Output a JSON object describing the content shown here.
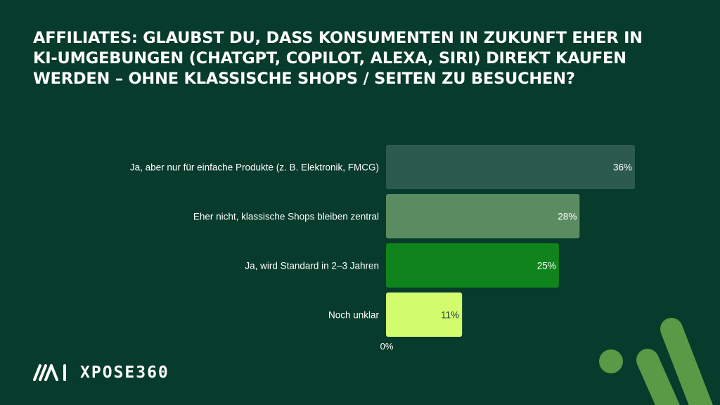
{
  "title": "Affiliates: Glaubst du, dass Konsumenten in Zukunft eher in KI-Umgebungen (ChatGPT, Copilot, Alexa, Siri) direkt kaufen werden – ohne klassische Shops / Seiten zu besuchen?",
  "logo": {
    "text": "XPOSE360",
    "icon": "ai-logo-icon"
  },
  "colors": {
    "background": "#073b2b",
    "accent": "#5a9a46"
  },
  "chart_data": {
    "type": "bar",
    "orientation": "horizontal",
    "title": "Affiliates: Glaubst du, dass Konsumenten in Zukunft eher in KI-Umgebungen (ChatGPT, Copilot, Alexa, Siri) direkt kaufen werden – ohne klassische Shops / Seiten zu besuchen?",
    "categories": [
      "Ja, aber nur für einfache Produkte (z. B. Elektronik, FMCG)",
      "Eher nicht, klassische Shops bleiben zentral",
      "Ja, wird Standard in 2–3 Jahren",
      "Noch unklar"
    ],
    "values": [
      36,
      28,
      25,
      11
    ],
    "value_labels": [
      "36%",
      "28%",
      "25%",
      "11%"
    ],
    "bar_colors": [
      "#2c5a4c",
      "#5b8c61",
      "#0f841d",
      "#d2fb6e"
    ],
    "label_colors": [
      "#ffffff",
      "#ffffff",
      "#ffffff",
      "#1f3a2c"
    ],
    "xlim": [
      0,
      36
    ],
    "axis_tick_label": "0%",
    "grid": false,
    "legend": "none"
  }
}
